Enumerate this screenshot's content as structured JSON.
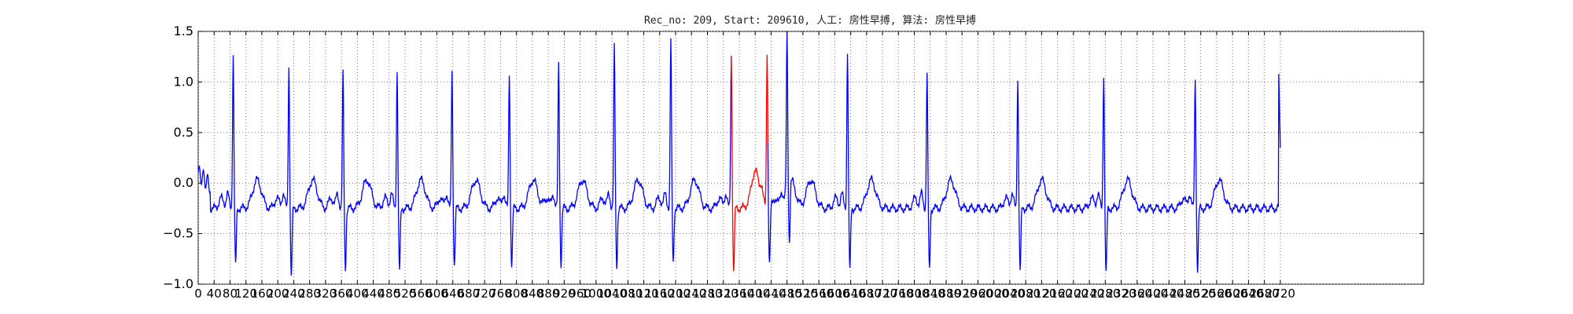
{
  "chart_data": {
    "type": "line",
    "title": "Rec_no: 209, Start: 209610, 人工: 房性早搏, 算法: 房性早搏",
    "xlabel": "",
    "ylabel": "",
    "xlim": [
      0,
      3080
    ],
    "ylim": [
      -1.0,
      1.5
    ],
    "y_ticks": [
      -1.0,
      -0.5,
      0.0,
      0.5,
      1.0,
      1.5
    ],
    "y_tick_labels": [
      "−1.0",
      "−0.5",
      "0.0",
      "0.5",
      "1.0",
      "1.5"
    ],
    "x_ticks": [
      0,
      40,
      80,
      120,
      160,
      200,
      240,
      280,
      320,
      360,
      400,
      440,
      480,
      520,
      560,
      600,
      640,
      680,
      720,
      760,
      800,
      840,
      880,
      920,
      960,
      1000,
      1040,
      1080,
      1120,
      1160,
      1200,
      1240,
      1280,
      1320,
      1360,
      1400,
      1440,
      1480,
      1520,
      1560,
      1600,
      1640,
      1680,
      1720,
      1760,
      1800,
      1840,
      1880,
      1920,
      1960,
      2000,
      2040,
      2080,
      2120,
      2160,
      2200,
      2240,
      2280,
      2320,
      2360,
      2400,
      2440,
      2480,
      2520,
      2560,
      2600,
      2640,
      2680,
      2720
    ],
    "grid": true,
    "grid_style": "dotted",
    "series": [
      {
        "color": "#0000ff",
        "segments": [
          [
            0,
            1340
          ],
          [
            1432,
            2720
          ]
        ],
        "r_peaks": [
          88,
          228,
          364,
          500,
          638,
          782,
          906,
          1046,
          1188,
          1480,
          1632,
          1832,
          2060,
          2276,
          2506
        ],
        "r_amplitudes": [
          1.27,
          1.16,
          1.08,
          1.12,
          1.12,
          1.09,
          1.19,
          1.35,
          1.42,
          1.3,
          1.31,
          1.08,
          1.03,
          1.08,
          1.04
        ],
        "s_depths": [
          -0.82,
          -0.93,
          -0.85,
          -0.87,
          -0.81,
          -0.82,
          -0.8,
          -0.82,
          -0.78,
          -0.83,
          -0.86,
          -0.87,
          -0.88,
          -0.9,
          -0.86
        ],
        "baseline": -0.25,
        "end_value": 0.35
      },
      {
        "color": "#ff0000",
        "segments": [
          [
            1340,
            1432
          ]
        ],
        "r_peaks": [
          1340,
          1430
        ],
        "r_amplitudes": [
          1.27,
          1.3
        ],
        "s_depths": [
          -0.87,
          -0.8
        ],
        "baseline": -0.25
      }
    ]
  }
}
